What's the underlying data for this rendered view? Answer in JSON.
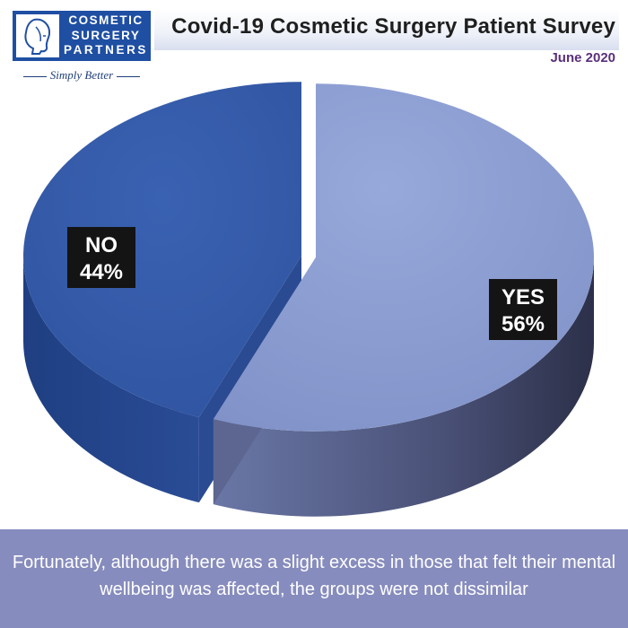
{
  "brand": {
    "lines": [
      "COSMETIC",
      "SURGERY",
      "PARTNERS"
    ],
    "tagline": "Simply Better",
    "icon": "woman-face-profile-icon"
  },
  "footer": {
    "text": "Fortunately, although there was a slight excess in those that felt their mental wellbeing was affected, the groups were not dissimilar"
  },
  "chart_data": {
    "type": "pie",
    "title": "Covid-19 Cosmetic Surgery Patient Survey",
    "subtitle": "June 2020",
    "slices": [
      {
        "label": "YES",
        "value": 56,
        "display": "56%",
        "color": "#8c9fd3"
      },
      {
        "label": "NO",
        "value": 44,
        "display": "44%",
        "color": "#3459a8"
      }
    ],
    "style": "3d-exploded",
    "legend": "none"
  }
}
